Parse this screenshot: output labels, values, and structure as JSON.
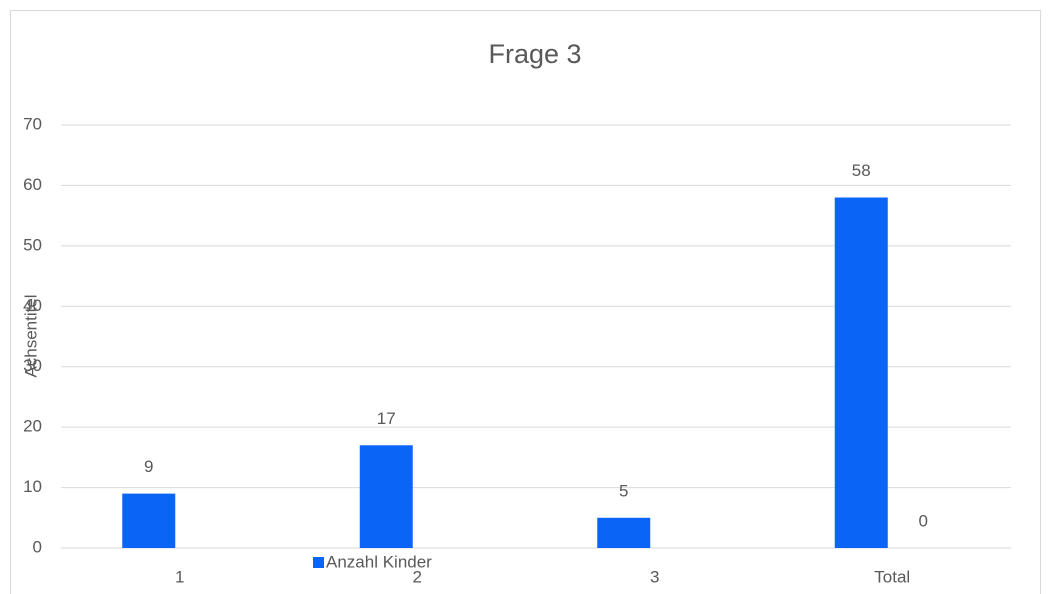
{
  "chart_data": {
    "type": "bar",
    "title": "Frage 3",
    "y_label": "Achsentitel",
    "categories": [
      "1",
      "2",
      "3",
      "Total"
    ],
    "series": [
      {
        "name": "Anzahl Kinder",
        "color": "#0a64f5",
        "values": [
          9,
          17,
          5,
          58
        ]
      },
      {
        "color": "#ed7d31",
        "values": [
          null,
          null,
          null,
          0
        ]
      }
    ],
    "ylim": [
      0,
      70
    ],
    "yticks": [
      0,
      10,
      20,
      30,
      40,
      50,
      60,
      70
    ],
    "grid": true,
    "legend": "bottom"
  }
}
